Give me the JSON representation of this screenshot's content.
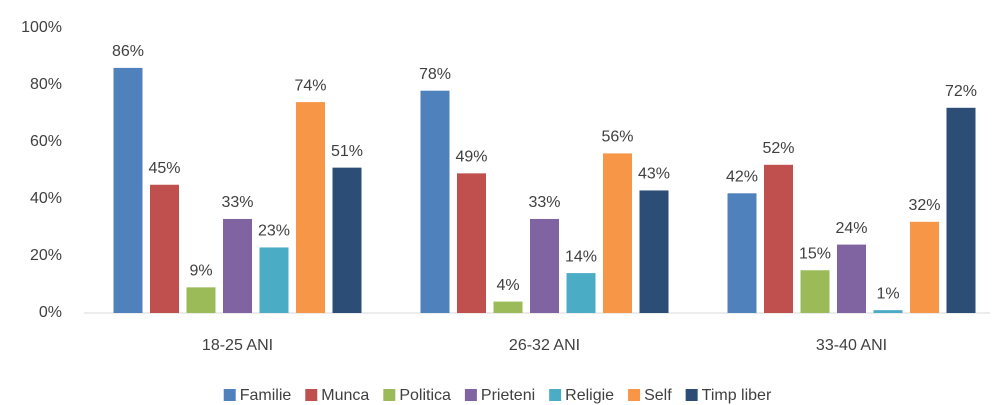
{
  "chart_data": {
    "type": "bar",
    "categories": [
      "18-25 ANI",
      "26-32 ANI",
      "33-40 ANI"
    ],
    "series": [
      {
        "name": "Familie",
        "color": "#4f81bd",
        "values": [
          86,
          78,
          42
        ],
        "value_labels": [
          "86%",
          "78%",
          "42%"
        ]
      },
      {
        "name": "Munca",
        "color": "#c0504d",
        "values": [
          45,
          49,
          52
        ],
        "value_labels": [
          "45%",
          "49%",
          "52%"
        ]
      },
      {
        "name": "Politica",
        "color": "#9bbb59",
        "values": [
          9,
          4,
          15
        ],
        "value_labels": [
          "9%",
          "4%",
          "15%"
        ]
      },
      {
        "name": "Prieteni",
        "color": "#8064a2",
        "values": [
          33,
          33,
          24
        ],
        "value_labels": [
          "33%",
          "33%",
          "24%"
        ]
      },
      {
        "name": "Religie",
        "color": "#4bacc6",
        "values": [
          23,
          14,
          1
        ],
        "value_labels": [
          "23%",
          "14%",
          "1%"
        ]
      },
      {
        "name": "Self",
        "color": "#f79646",
        "values": [
          74,
          56,
          32
        ],
        "value_labels": [
          "74%",
          "56%",
          "32%"
        ]
      },
      {
        "name": "Timp liber",
        "color": "#2c4d75",
        "values": [
          51,
          43,
          72
        ],
        "value_labels": [
          "51%",
          "43%",
          "72%"
        ]
      }
    ],
    "ylim": [
      0,
      100
    ],
    "yticks": [
      {
        "value": 0,
        "label": "0%"
      },
      {
        "value": 20,
        "label": "20%"
      },
      {
        "value": 40,
        "label": "40%"
      },
      {
        "value": 60,
        "label": "60%"
      },
      {
        "value": 80,
        "label": "80%"
      },
      {
        "value": 100,
        "label": "100%"
      }
    ],
    "grid": false,
    "legend": "bottom"
  }
}
